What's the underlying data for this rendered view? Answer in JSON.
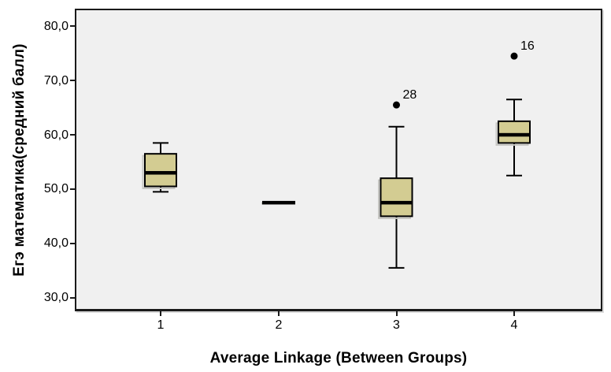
{
  "chart_data": {
    "type": "boxplot",
    "title": "",
    "xlabel": "Average Linkage (Between Groups)",
    "ylabel": "Егэ математика(средний балл)",
    "ylim": [
      27.5,
      83
    ],
    "grid": false,
    "legend": false,
    "y_axis": {
      "ticks": [
        {
          "value": 80,
          "label": "80,0"
        },
        {
          "value": 70,
          "label": "70,0"
        },
        {
          "value": 60,
          "label": "60,0"
        },
        {
          "value": 50,
          "label": "50,0"
        },
        {
          "value": 40,
          "label": "40,0"
        },
        {
          "value": 30,
          "label": "30,0"
        }
      ]
    },
    "categories": [
      "1",
      "2",
      "3",
      "4"
    ],
    "boxes": [
      {
        "category": "1",
        "min": 49.5,
        "q1": 50.5,
        "median": 53,
        "q3": 56.5,
        "max": 58.5,
        "outliers": []
      },
      {
        "category": "2",
        "min": 47.5,
        "q1": 47.5,
        "median": 47.5,
        "q3": 47.5,
        "max": 47.5,
        "outliers": []
      },
      {
        "category": "3",
        "min": 35.5,
        "q1": 45,
        "median": 47.5,
        "q3": 52,
        "max": 61.5,
        "outliers": [
          {
            "value": 65.5,
            "label": "28"
          }
        ]
      },
      {
        "category": "4",
        "min": 52.5,
        "q1": 58.5,
        "median": 60,
        "q3": 62.5,
        "max": 66.5,
        "outliers": [
          {
            "value": 74.5,
            "label": "16"
          }
        ]
      }
    ],
    "style": {
      "box_fill": "#d3cc92",
      "box_stroke": "#000000",
      "median_color": "#000000",
      "whisker_color": "#000000",
      "outlier_color": "#000000",
      "plot_background": "#f0f0f0",
      "page_background": "#ffffff",
      "box_shadow_color": "#c6c6c2"
    }
  }
}
